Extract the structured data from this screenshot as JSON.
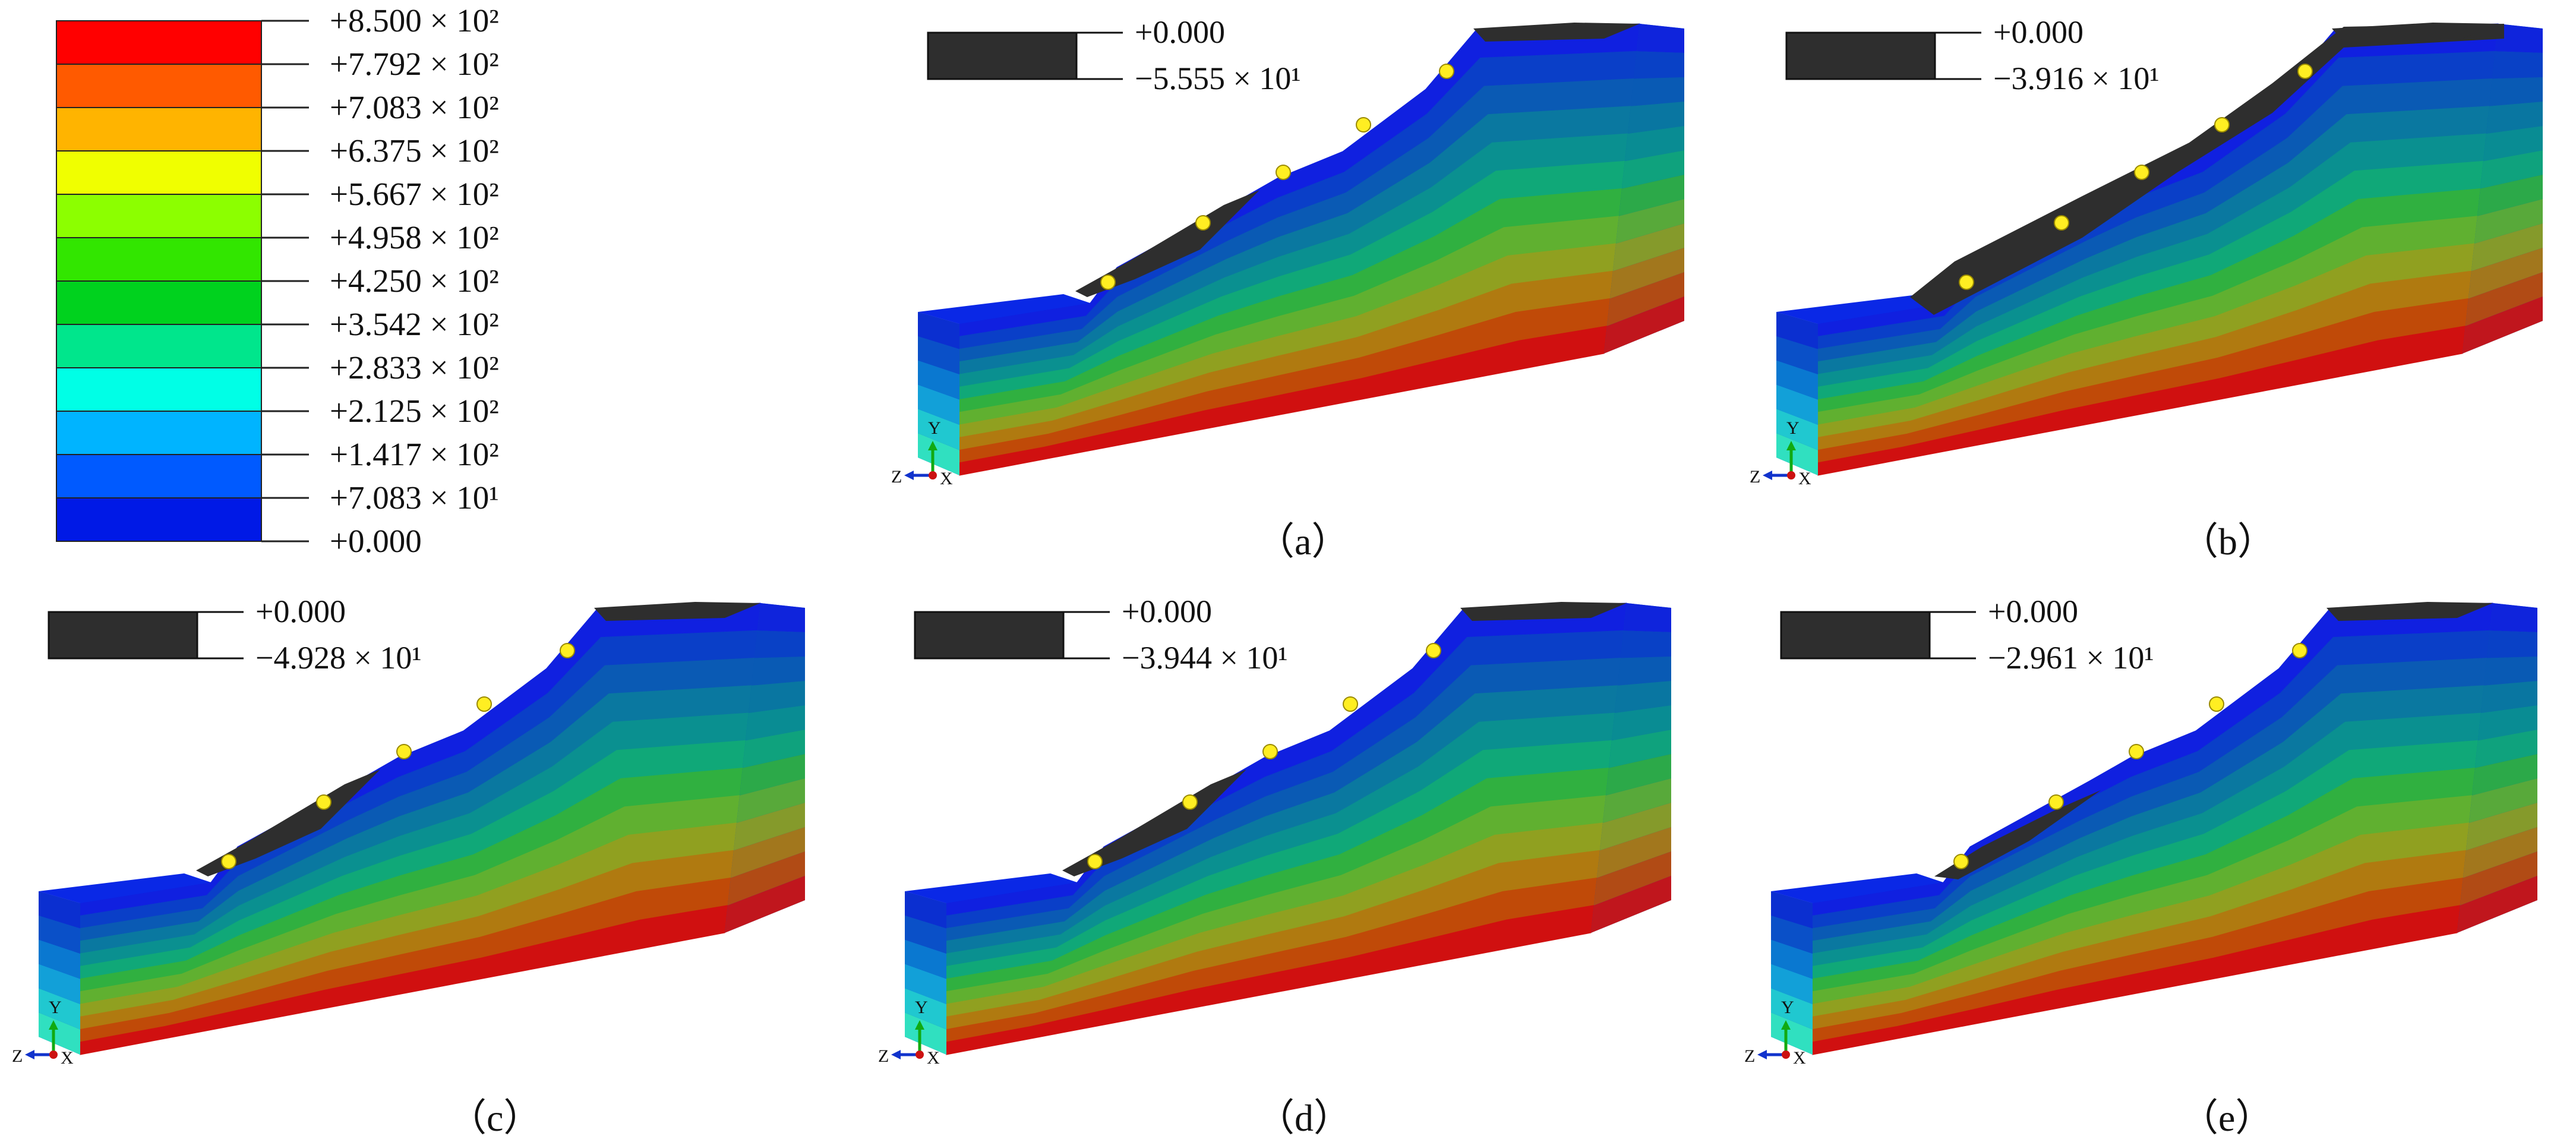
{
  "legend": {
    "colors": [
      "#ff0000",
      "#ff5a00",
      "#ffb400",
      "#f0ff00",
      "#8cff00",
      "#32e600",
      "#00d21e",
      "#00e68c",
      "#00ffe6",
      "#00b4ff",
      "#005aff",
      "#0019e6"
    ],
    "labels": [
      "+8.500 × 10²",
      "+7.792 × 10²",
      "+7.083 × 10²",
      "+6.375 × 10²",
      "+5.667 × 10²",
      "+4.958 × 10²",
      "+4.250 × 10²",
      "+3.542 × 10²",
      "+2.833 × 10²",
      "+2.125 × 10²",
      "+1.417 × 10²",
      "+7.083 × 10¹",
      "+0.000"
    ]
  },
  "panels": [
    {
      "id": "a",
      "caption": "（a）",
      "key_top": "+0.000",
      "key_bottom": "−5.555 × 10¹",
      "dark_variant": "mid"
    },
    {
      "id": "b",
      "caption": "（b）",
      "key_top": "+0.000",
      "key_bottom": "−3.916 × 10¹",
      "dark_variant": "full"
    },
    {
      "id": "c",
      "caption": "（c）",
      "key_top": "+0.000",
      "key_bottom": "−4.928 × 10¹",
      "dark_variant": "mid"
    },
    {
      "id": "d",
      "caption": "（d）",
      "key_top": "+0.000",
      "key_bottom": "−3.944 × 10¹",
      "dark_variant": "mid"
    },
    {
      "id": "e",
      "caption": "（e）",
      "key_top": "+0.000",
      "key_bottom": "−2.961 × 10¹",
      "dark_variant": "small"
    }
  ],
  "triad": {
    "y": "Y",
    "z": "Z",
    "x": "X"
  },
  "band_colors": [
    "#1020e0",
    "#0a3fc8",
    "#0a5ab4",
    "#0a78a0",
    "#0a9090",
    "#10a878",
    "#30b040",
    "#60b030",
    "#90a020",
    "#b07a10",
    "#c04a08",
    "#d01010"
  ],
  "dark_color": "#2e2e2e",
  "anchor_color": "#ffee22"
}
